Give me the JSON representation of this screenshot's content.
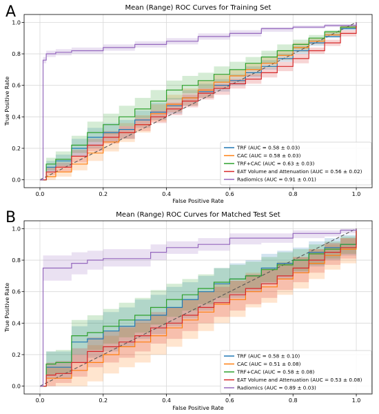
{
  "chart_data": [
    {
      "type": "line",
      "panel_label": "A",
      "title": "Mean (Range) ROC Curves for Training Set",
      "xlabel": "False Positive Rate",
      "ylabel": "True Positive Rate",
      "xlim": [
        -0.05,
        1.05
      ],
      "ylim": [
        -0.05,
        1.05
      ],
      "xticks": [
        0.0,
        0.2,
        0.4,
        0.6,
        0.8,
        1.0
      ],
      "yticks": [
        0.0,
        0.2,
        0.4,
        0.6,
        0.8,
        1.0
      ],
      "xtick_labels": [
        "0.0",
        "0.2",
        "0.4",
        "0.6",
        "0.8",
        "1.0"
      ],
      "ytick_labels": [
        "0.0",
        "0.2",
        "0.4",
        "0.6",
        "0.8",
        "1.0"
      ],
      "grid": true,
      "legend_position": "lower-right",
      "chance_line": true,
      "series": [
        {
          "name": "TRF (AUC = 0.58 ± 0.03)",
          "color": "#1f77b4",
          "x": [
            0,
            0.02,
            0.05,
            0.1,
            0.15,
            0.2,
            0.25,
            0.3,
            0.35,
            0.4,
            0.45,
            0.5,
            0.55,
            0.6,
            0.65,
            0.7,
            0.75,
            0.8,
            0.85,
            0.9,
            0.95,
            1.0
          ],
          "y": [
            0,
            0.08,
            0.12,
            0.2,
            0.27,
            0.3,
            0.32,
            0.38,
            0.43,
            0.47,
            0.52,
            0.56,
            0.6,
            0.63,
            0.68,
            0.72,
            0.77,
            0.82,
            0.87,
            0.91,
            0.96,
            1.0
          ],
          "y_low": [
            0,
            0.05,
            0.08,
            0.15,
            0.2,
            0.24,
            0.26,
            0.33,
            0.38,
            0.42,
            0.47,
            0.52,
            0.56,
            0.6,
            0.65,
            0.7,
            0.75,
            0.8,
            0.85,
            0.9,
            0.95,
            1.0
          ],
          "y_high": [
            0,
            0.12,
            0.16,
            0.26,
            0.33,
            0.36,
            0.38,
            0.44,
            0.49,
            0.52,
            0.57,
            0.61,
            0.64,
            0.67,
            0.72,
            0.76,
            0.8,
            0.85,
            0.89,
            0.93,
            0.97,
            1.0
          ]
        },
        {
          "name": "CAC (AUC = 0.58 ± 0.03)",
          "color": "#ff7f0e",
          "x": [
            0,
            0.02,
            0.05,
            0.1,
            0.15,
            0.2,
            0.25,
            0.3,
            0.35,
            0.4,
            0.45,
            0.5,
            0.55,
            0.6,
            0.65,
            0.7,
            0.75,
            0.8,
            0.85,
            0.9,
            0.95,
            1.0
          ],
          "y": [
            0,
            0.02,
            0.05,
            0.1,
            0.17,
            0.24,
            0.3,
            0.35,
            0.42,
            0.48,
            0.52,
            0.57,
            0.62,
            0.66,
            0.7,
            0.74,
            0.79,
            0.84,
            0.88,
            0.92,
            0.97,
            1.0
          ],
          "y_low": [
            0,
            0.0,
            0.02,
            0.06,
            0.12,
            0.18,
            0.24,
            0.3,
            0.37,
            0.43,
            0.47,
            0.52,
            0.58,
            0.62,
            0.66,
            0.71,
            0.76,
            0.81,
            0.86,
            0.91,
            0.96,
            1.0
          ],
          "y_high": [
            0,
            0.05,
            0.09,
            0.15,
            0.22,
            0.3,
            0.36,
            0.41,
            0.48,
            0.54,
            0.58,
            0.63,
            0.67,
            0.7,
            0.74,
            0.78,
            0.82,
            0.87,
            0.9,
            0.94,
            0.98,
            1.0
          ]
        },
        {
          "name": "TRF+CAC (AUC = 0.63 ± 0.03)",
          "color": "#2ca02c",
          "x": [
            0,
            0.02,
            0.05,
            0.1,
            0.15,
            0.2,
            0.25,
            0.3,
            0.35,
            0.4,
            0.45,
            0.5,
            0.55,
            0.6,
            0.65,
            0.7,
            0.75,
            0.8,
            0.85,
            0.9,
            0.95,
            1.0
          ],
          "y": [
            0,
            0.1,
            0.13,
            0.22,
            0.3,
            0.35,
            0.4,
            0.45,
            0.5,
            0.57,
            0.6,
            0.63,
            0.67,
            0.7,
            0.74,
            0.78,
            0.82,
            0.86,
            0.9,
            0.94,
            0.97,
            1.0
          ],
          "y_low": [
            0,
            0.06,
            0.09,
            0.17,
            0.24,
            0.29,
            0.34,
            0.39,
            0.44,
            0.51,
            0.55,
            0.58,
            0.62,
            0.66,
            0.7,
            0.74,
            0.79,
            0.83,
            0.88,
            0.92,
            0.96,
            1.0
          ],
          "y_high": [
            0,
            0.14,
            0.18,
            0.28,
            0.37,
            0.42,
            0.47,
            0.52,
            0.57,
            0.63,
            0.66,
            0.68,
            0.72,
            0.75,
            0.78,
            0.82,
            0.86,
            0.89,
            0.92,
            0.95,
            0.98,
            1.0
          ]
        },
        {
          "name": "EAT Volume and Attenuation (AUC = 0.56 ± 0.02)",
          "color": "#d62728",
          "x": [
            0,
            0.02,
            0.05,
            0.1,
            0.15,
            0.2,
            0.25,
            0.3,
            0.35,
            0.4,
            0.45,
            0.5,
            0.55,
            0.6,
            0.65,
            0.7,
            0.75,
            0.8,
            0.85,
            0.9,
            0.95,
            1.0
          ],
          "y": [
            0,
            0.05,
            0.08,
            0.15,
            0.22,
            0.27,
            0.3,
            0.35,
            0.4,
            0.45,
            0.5,
            0.55,
            0.58,
            0.61,
            0.64,
            0.68,
            0.72,
            0.77,
            0.82,
            0.87,
            0.93,
            1.0
          ],
          "y_low": [
            0,
            0.03,
            0.05,
            0.11,
            0.18,
            0.23,
            0.26,
            0.31,
            0.36,
            0.41,
            0.46,
            0.51,
            0.54,
            0.58,
            0.61,
            0.65,
            0.69,
            0.74,
            0.8,
            0.85,
            0.91,
            1.0
          ],
          "y_high": [
            0,
            0.08,
            0.11,
            0.19,
            0.26,
            0.31,
            0.34,
            0.39,
            0.44,
            0.49,
            0.54,
            0.58,
            0.61,
            0.64,
            0.67,
            0.71,
            0.75,
            0.8,
            0.84,
            0.89,
            0.95,
            1.0
          ]
        },
        {
          "name": "Radiomics (AUC = 0.91 ± 0.01)",
          "color": "#9467bd",
          "x": [
            0,
            0.01,
            0.02,
            0.05,
            0.1,
            0.2,
            0.3,
            0.4,
            0.5,
            0.6,
            0.7,
            0.8,
            0.9,
            1.0
          ],
          "y": [
            0,
            0.76,
            0.8,
            0.81,
            0.82,
            0.84,
            0.86,
            0.88,
            0.91,
            0.93,
            0.96,
            0.97,
            0.98,
            1.0
          ],
          "y_low": [
            0,
            0.74,
            0.78,
            0.79,
            0.8,
            0.82,
            0.84,
            0.86,
            0.89,
            0.91,
            0.94,
            0.96,
            0.97,
            1.0
          ],
          "y_high": [
            0,
            0.78,
            0.82,
            0.83,
            0.84,
            0.86,
            0.88,
            0.9,
            0.93,
            0.95,
            0.97,
            0.98,
            0.99,
            1.0
          ]
        }
      ]
    },
    {
      "type": "line",
      "panel_label": "B",
      "title": "Mean (Range) ROC Curves for Matched Test Set",
      "xlabel": "False Positive Rate",
      "ylabel": "True Positive Rate",
      "xlim": [
        -0.05,
        1.05
      ],
      "ylim": [
        -0.05,
        1.05
      ],
      "xticks": [
        0.0,
        0.2,
        0.4,
        0.6,
        0.8,
        1.0
      ],
      "yticks": [
        0.0,
        0.2,
        0.4,
        0.6,
        0.8,
        1.0
      ],
      "xtick_labels": [
        "0.0",
        "0.2",
        "0.4",
        "0.6",
        "0.8",
        "1.0"
      ],
      "ytick_labels": [
        "0.0",
        "0.2",
        "0.4",
        "0.6",
        "0.8",
        "1.0"
      ],
      "grid": true,
      "legend_position": "lower-right",
      "chance_line": true,
      "series": [
        {
          "name": "TRF (AUC = 0.58 ± 0.10)",
          "color": "#1f77b4",
          "x": [
            0,
            0.02,
            0.05,
            0.1,
            0.15,
            0.2,
            0.25,
            0.3,
            0.35,
            0.4,
            0.45,
            0.5,
            0.55,
            0.6,
            0.65,
            0.7,
            0.75,
            0.8,
            0.85,
            0.9,
            0.95,
            1.0
          ],
          "y": [
            0,
            0.12,
            0.12,
            0.28,
            0.3,
            0.35,
            0.38,
            0.42,
            0.45,
            0.5,
            0.55,
            0.6,
            0.65,
            0.68,
            0.7,
            0.75,
            0.78,
            0.8,
            0.85,
            0.88,
            0.9,
            1.0
          ],
          "y_low": [
            0,
            0.05,
            0.05,
            0.15,
            0.18,
            0.22,
            0.25,
            0.3,
            0.33,
            0.38,
            0.43,
            0.48,
            0.53,
            0.56,
            0.6,
            0.65,
            0.68,
            0.72,
            0.76,
            0.8,
            0.83,
            1.0
          ],
          "y_high": [
            0,
            0.22,
            0.22,
            0.38,
            0.42,
            0.47,
            0.5,
            0.55,
            0.58,
            0.63,
            0.66,
            0.7,
            0.75,
            0.78,
            0.8,
            0.84,
            0.86,
            0.88,
            0.92,
            0.94,
            0.96,
            1.0
          ]
        },
        {
          "name": "CAC (AUC = 0.51 ± 0.08)",
          "color": "#ff7f0e",
          "x": [
            0,
            0.02,
            0.05,
            0.1,
            0.15,
            0.2,
            0.25,
            0.3,
            0.35,
            0.4,
            0.45,
            0.5,
            0.55,
            0.6,
            0.65,
            0.7,
            0.75,
            0.8,
            0.85,
            0.9,
            0.95,
            1.0
          ],
          "y": [
            0,
            0.05,
            0.05,
            0.1,
            0.15,
            0.2,
            0.25,
            0.28,
            0.32,
            0.37,
            0.42,
            0.47,
            0.52,
            0.55,
            0.6,
            0.63,
            0.68,
            0.72,
            0.78,
            0.83,
            0.87,
            1.0
          ],
          "y_low": [
            0,
            0.0,
            0.0,
            0.0,
            0.03,
            0.08,
            0.12,
            0.15,
            0.2,
            0.25,
            0.3,
            0.35,
            0.4,
            0.44,
            0.5,
            0.53,
            0.58,
            0.62,
            0.68,
            0.74,
            0.78,
            1.0
          ],
          "y_high": [
            0,
            0.12,
            0.12,
            0.2,
            0.26,
            0.32,
            0.37,
            0.4,
            0.45,
            0.5,
            0.55,
            0.6,
            0.65,
            0.67,
            0.72,
            0.75,
            0.79,
            0.82,
            0.87,
            0.9,
            0.94,
            1.0
          ]
        },
        {
          "name": "TRF+CAC (AUC = 0.58 ± 0.08)",
          "color": "#2ca02c",
          "x": [
            0,
            0.02,
            0.05,
            0.1,
            0.15,
            0.2,
            0.25,
            0.3,
            0.35,
            0.4,
            0.45,
            0.5,
            0.55,
            0.6,
            0.65,
            0.7,
            0.75,
            0.8,
            0.85,
            0.9,
            0.95,
            1.0
          ],
          "y": [
            0,
            0.14,
            0.15,
            0.32,
            0.34,
            0.38,
            0.42,
            0.45,
            0.5,
            0.55,
            0.58,
            0.62,
            0.66,
            0.68,
            0.7,
            0.74,
            0.77,
            0.8,
            0.84,
            0.87,
            0.9,
            1.0
          ],
          "y_low": [
            0,
            0.07,
            0.08,
            0.2,
            0.23,
            0.27,
            0.31,
            0.34,
            0.39,
            0.44,
            0.48,
            0.52,
            0.56,
            0.59,
            0.62,
            0.66,
            0.7,
            0.73,
            0.77,
            0.81,
            0.84,
            1.0
          ],
          "y_high": [
            0,
            0.22,
            0.23,
            0.42,
            0.45,
            0.49,
            0.53,
            0.56,
            0.61,
            0.65,
            0.68,
            0.71,
            0.75,
            0.77,
            0.79,
            0.82,
            0.85,
            0.87,
            0.9,
            0.92,
            0.95,
            1.0
          ]
        },
        {
          "name": "EAT Volume and Attenuation (AUC = 0.53 ± 0.08)",
          "color": "#d62728",
          "x": [
            0,
            0.02,
            0.05,
            0.1,
            0.15,
            0.2,
            0.25,
            0.3,
            0.35,
            0.4,
            0.45,
            0.5,
            0.55,
            0.6,
            0.65,
            0.7,
            0.75,
            0.8,
            0.85,
            0.9,
            0.95,
            1.0
          ],
          "y": [
            0,
            0.07,
            0.08,
            0.15,
            0.22,
            0.25,
            0.28,
            0.32,
            0.37,
            0.4,
            0.45,
            0.5,
            0.53,
            0.58,
            0.62,
            0.65,
            0.7,
            0.75,
            0.8,
            0.85,
            0.88,
            1.0
          ],
          "y_low": [
            0,
            0.0,
            0.02,
            0.06,
            0.12,
            0.15,
            0.18,
            0.22,
            0.27,
            0.3,
            0.35,
            0.4,
            0.44,
            0.48,
            0.52,
            0.56,
            0.61,
            0.66,
            0.72,
            0.77,
            0.81,
            1.0
          ],
          "y_high": [
            0,
            0.15,
            0.16,
            0.24,
            0.31,
            0.35,
            0.38,
            0.42,
            0.47,
            0.5,
            0.55,
            0.6,
            0.63,
            0.67,
            0.71,
            0.74,
            0.78,
            0.82,
            0.87,
            0.91,
            0.94,
            1.0
          ]
        },
        {
          "name": "Radiomics (AUC = 0.89 ± 0.03)",
          "color": "#9467bd",
          "x": [
            0,
            0.01,
            0.02,
            0.05,
            0.1,
            0.15,
            0.2,
            0.25,
            0.3,
            0.35,
            0.4,
            0.5,
            0.6,
            0.7,
            0.8,
            0.9,
            0.95,
            1.0
          ],
          "y": [
            0,
            0.75,
            0.75,
            0.75,
            0.78,
            0.8,
            0.81,
            0.81,
            0.81,
            0.85,
            0.88,
            0.9,
            0.94,
            0.94,
            0.97,
            0.97,
            0.99,
            1.0
          ],
          "y_low": [
            0,
            0.67,
            0.67,
            0.67,
            0.71,
            0.74,
            0.76,
            0.76,
            0.76,
            0.8,
            0.84,
            0.86,
            0.9,
            0.91,
            0.94,
            0.95,
            0.97,
            1.0
          ],
          "y_high": [
            0,
            0.83,
            0.83,
            0.83,
            0.85,
            0.86,
            0.87,
            0.87,
            0.87,
            0.9,
            0.92,
            0.94,
            0.97,
            0.97,
            0.99,
            0.99,
            1.0,
            1.0
          ]
        }
      ]
    }
  ]
}
